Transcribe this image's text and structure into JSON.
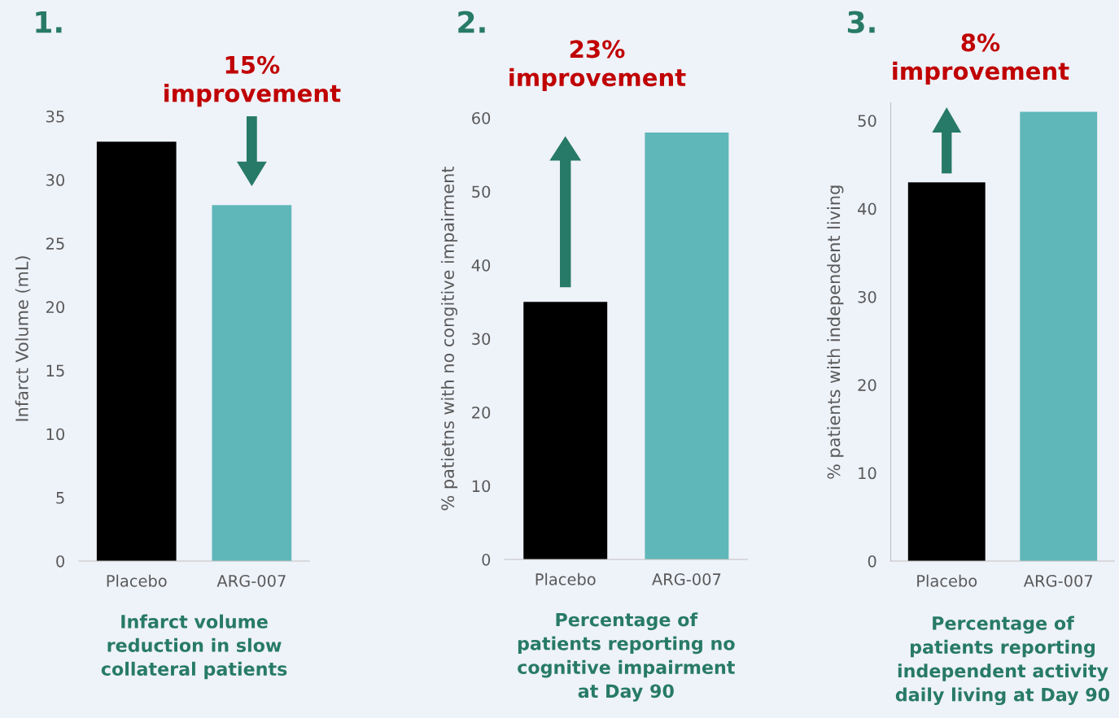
{
  "chart_data": [
    {
      "type": "bar",
      "title": "1.",
      "ylabel": "Infarct Volume (mL)",
      "categories": [
        "Placebo",
        "ARG-007"
      ],
      "values": [
        33,
        28
      ],
      "colors": [
        "#000000",
        "#5fb7b9"
      ],
      "ylim": [
        0,
        35
      ],
      "yticks": [
        0,
        5,
        10,
        15,
        20,
        25,
        30,
        35
      ],
      "grid": false,
      "annotations": [
        "15%\nimprovement",
        "Infarct volume\nreduction in slow\ncollateral patients"
      ]
    },
    {
      "type": "bar",
      "title": "2.",
      "ylabel": "% patietns with no congitive impairment",
      "categories": [
        "Placebo",
        "ARG-007"
      ],
      "values": [
        35,
        58
      ],
      "colors": [
        "#000000",
        "#5fb7b9"
      ],
      "ylim": [
        0,
        60
      ],
      "yticks": [
        0,
        10,
        20,
        30,
        40,
        50,
        60
      ],
      "grid": false,
      "annotations": [
        "23%\nimprovement",
        "Percentage of\npatients reporting no\ncognitive impairment\nat Day 90"
      ]
    },
    {
      "type": "bar",
      "title": "3.",
      "ylabel": "% patients with independent living",
      "categories": [
        "Placebo",
        "ARG-007"
      ],
      "values": [
        43,
        51
      ],
      "colors": [
        "#000000",
        "#5fb7b9"
      ],
      "ylim": [
        0,
        52
      ],
      "yticks": [
        0,
        10,
        20,
        30,
        40,
        50
      ],
      "grid": false,
      "annotations": [
        "8%\nimprovement",
        "Percentage of\npatients reporting\nindependent activity\ndaily living at Day 90"
      ]
    }
  ]
}
